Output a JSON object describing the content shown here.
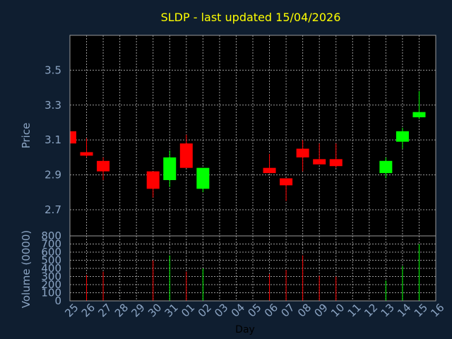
{
  "chart_data": {
    "type": "candlestick",
    "title": "SLDP - last updated 15/04/2026",
    "xlabel": "Day",
    "price_ylabel": "Price",
    "volume_ylabel": "Volume (0000)",
    "categories": [
      "25",
      "26",
      "27",
      "28",
      "29",
      "30",
      "31",
      "01",
      "02",
      "03",
      "04",
      "05",
      "06",
      "07",
      "08",
      "09",
      "10",
      "11",
      "12",
      "13",
      "14",
      "15",
      "16"
    ],
    "price_ylim": [
      2.55,
      3.7
    ],
    "price_ticks": [
      "3.5",
      "3.3",
      "3.1",
      "2.9",
      "2.7"
    ],
    "price_tick_values": [
      3.5,
      3.3,
      3.1,
      2.9,
      2.7
    ],
    "volume_ylim": [
      0,
      800
    ],
    "volume_ticks": [
      "800",
      "700",
      "600",
      "500",
      "400",
      "300",
      "200",
      "100",
      "0"
    ],
    "volume_tick_values": [
      800,
      700,
      600,
      500,
      400,
      300,
      200,
      100,
      0
    ],
    "candles": [
      {
        "day": "25",
        "open": 3.15,
        "close": 3.08,
        "high": 3.15,
        "low": 3.08
      },
      {
        "day": "26",
        "open": 3.03,
        "close": 3.01,
        "high": 3.11,
        "low": 3.0
      },
      {
        "day": "27",
        "open": 2.98,
        "close": 2.92,
        "high": 3.0,
        "low": 2.87
      },
      {
        "day": "30",
        "open": 2.92,
        "close": 2.82,
        "high": 2.92,
        "low": 2.77
      },
      {
        "day": "31",
        "open": 2.87,
        "close": 3.0,
        "high": 3.04,
        "low": 2.83
      },
      {
        "day": "01",
        "open": 3.08,
        "close": 2.94,
        "high": 3.13,
        "low": 2.94
      },
      {
        "day": "02",
        "open": 2.82,
        "close": 2.94,
        "high": 2.94,
        "low": 2.8
      },
      {
        "day": "06",
        "open": 2.94,
        "close": 2.91,
        "high": 3.02,
        "low": 2.91
      },
      {
        "day": "07",
        "open": 2.88,
        "close": 2.84,
        "high": 2.88,
        "low": 2.75
      },
      {
        "day": "08",
        "open": 3.05,
        "close": 3.0,
        "high": 3.1,
        "low": 2.92
      },
      {
        "day": "09",
        "open": 2.99,
        "close": 2.96,
        "high": 3.08,
        "low": 2.96
      },
      {
        "day": "10",
        "open": 2.99,
        "close": 2.95,
        "high": 3.08,
        "low": 2.94
      },
      {
        "day": "13",
        "open": 2.91,
        "close": 2.98,
        "high": 3.0,
        "low": 2.88
      },
      {
        "day": "14",
        "open": 3.09,
        "close": 3.15,
        "high": 3.17,
        "low": 3.05
      },
      {
        "day": "15",
        "open": 3.23,
        "close": 3.26,
        "high": 3.38,
        "low": 3.22
      }
    ],
    "volume": [
      {
        "day": "26",
        "value": 320,
        "direction": "down"
      },
      {
        "day": "27",
        "value": 360,
        "direction": "down"
      },
      {
        "day": "30",
        "value": 500,
        "direction": "down"
      },
      {
        "day": "31",
        "value": 560,
        "direction": "up"
      },
      {
        "day": "01",
        "value": 360,
        "direction": "down"
      },
      {
        "day": "02",
        "value": 400,
        "direction": "up"
      },
      {
        "day": "06",
        "value": 330,
        "direction": "down"
      },
      {
        "day": "07",
        "value": 380,
        "direction": "down"
      },
      {
        "day": "08",
        "value": 560,
        "direction": "down"
      },
      {
        "day": "09",
        "value": 310,
        "direction": "down"
      },
      {
        "day": "10",
        "value": 300,
        "direction": "down"
      },
      {
        "day": "13",
        "value": 250,
        "direction": "up"
      },
      {
        "day": "14",
        "value": 430,
        "direction": "up"
      },
      {
        "day": "15",
        "value": 700,
        "direction": "up"
      }
    ],
    "grid": true,
    "colors": {
      "background": "#0f1e30",
      "plot_background": "#000000",
      "title": "#ffff00",
      "labels": "#8ca5c4",
      "grid": "#9a9a9a",
      "up": "#00ff00",
      "down": "#ff0000"
    }
  }
}
